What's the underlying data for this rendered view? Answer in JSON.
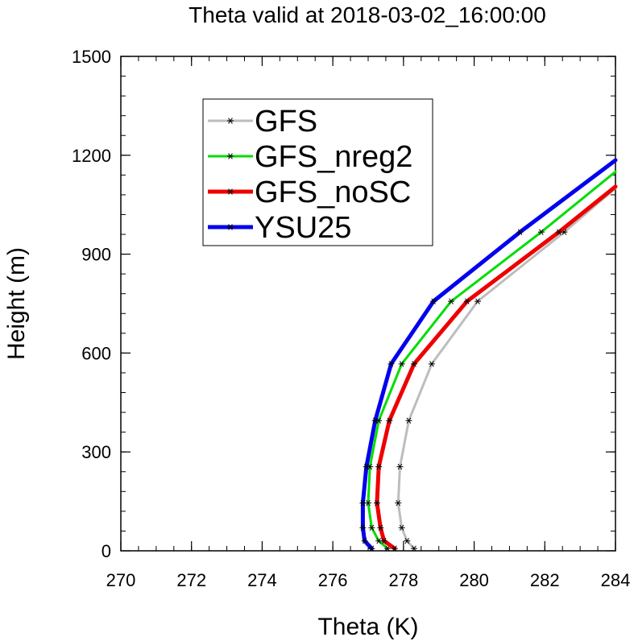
{
  "chart_data": {
    "type": "line",
    "title": "Theta valid at 2018-03-02_16:00:00",
    "xlabel": "Theta (K)",
    "ylabel": "Height (m)",
    "xlim": [
      270,
      284
    ],
    "ylim": [
      0,
      1500
    ],
    "xticks": [
      270,
      272,
      274,
      276,
      278,
      280,
      282,
      284
    ],
    "yticks": [
      0,
      300,
      600,
      900,
      1200,
      1500
    ],
    "grid": false,
    "legend_position": "top-left",
    "series": [
      {
        "name": "GFS",
        "color": "#bdbdbd",
        "marker": "asterisk",
        "x": [
          278.3,
          278.1,
          277.95,
          277.85,
          277.9,
          278.15,
          278.8,
          280.1,
          282.55,
          284.0
        ],
        "y": [
          7,
          30,
          70,
          145,
          255,
          395,
          567,
          757,
          967,
          1100
        ]
      },
      {
        "name": "GFS_nreg2",
        "color": "#00dd00",
        "marker": "asterisk",
        "x": [
          277.55,
          277.3,
          277.1,
          277.0,
          277.05,
          277.3,
          277.95,
          279.35,
          281.9,
          284.0
        ],
        "y": [
          7,
          30,
          70,
          145,
          255,
          395,
          567,
          757,
          967,
          1150
        ]
      },
      {
        "name": "GFS_noSC",
        "color": "#ee0000",
        "marker": "asterisk",
        "x": [
          277.75,
          277.45,
          277.35,
          277.25,
          277.3,
          277.6,
          278.3,
          279.8,
          282.4,
          284.0
        ],
        "y": [
          7,
          30,
          70,
          145,
          255,
          395,
          567,
          757,
          967,
          1105
        ]
      },
      {
        "name": "YSU25",
        "color": "#0000ee",
        "marker": "asterisk",
        "x": [
          277.1,
          276.9,
          276.85,
          276.85,
          276.95,
          277.2,
          277.65,
          278.85,
          281.3,
          284.0
        ],
        "y": [
          7,
          30,
          70,
          145,
          255,
          395,
          567,
          757,
          967,
          1185
        ]
      }
    ]
  }
}
